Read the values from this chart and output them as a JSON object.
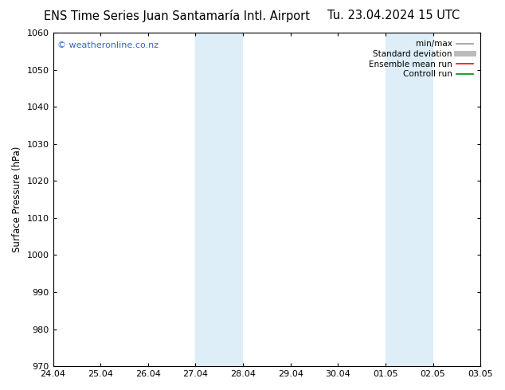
{
  "title_left": "ENS Time Series Juan Santamaría Intl. Airport",
  "title_right": "Tu. 23.04.2024 15 UTC",
  "ylabel": "Surface Pressure (hPa)",
  "ylim": [
    970,
    1060
  ],
  "yticks": [
    970,
    980,
    990,
    1000,
    1010,
    1020,
    1030,
    1040,
    1050,
    1060
  ],
  "xtick_labels": [
    "24.04",
    "25.04",
    "26.04",
    "27.04",
    "28.04",
    "29.04",
    "30.04",
    "01.05",
    "02.05",
    "03.05"
  ],
  "xtick_positions": [
    0,
    1,
    2,
    3,
    4,
    5,
    6,
    7,
    8,
    9
  ],
  "background_color": "#ffffff",
  "shaded_bands": [
    {
      "x_start": 3,
      "x_end": 4,
      "color": "#ddeef8"
    },
    {
      "x_start": 7,
      "x_end": 8,
      "color": "#ddeef8"
    }
  ],
  "watermark_text": "© weatheronline.co.nz",
  "watermark_color": "#3366cc",
  "legend_entries": [
    {
      "label": "min/max",
      "color": "#999999",
      "lw": 1.2
    },
    {
      "label": "Standard deviation",
      "color": "#bbbbbb",
      "lw": 5
    },
    {
      "label": "Ensemble mean run",
      "color": "#ff0000",
      "lw": 1.2
    },
    {
      "label": "Controll run",
      "color": "#008800",
      "lw": 1.2
    }
  ],
  "title_fontsize": 10.5,
  "tick_label_fontsize": 8,
  "ylabel_fontsize": 8.5,
  "watermark_fontsize": 8,
  "legend_fontsize": 7.5,
  "figsize": [
    6.34,
    4.9
  ],
  "dpi": 100
}
